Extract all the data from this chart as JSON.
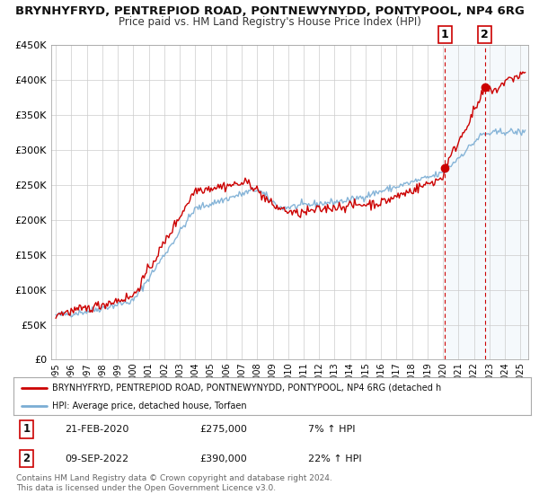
{
  "title": "BRYNHYFRYD, PENTREPIOD ROAD, PONTNEWYNYDD, PONTYPOOL, NP4 6RG",
  "subtitle": "Price paid vs. HM Land Registry's House Price Index (HPI)",
  "ylim": [
    0,
    450000
  ],
  "yticks": [
    0,
    50000,
    100000,
    150000,
    200000,
    250000,
    300000,
    350000,
    400000,
    450000
  ],
  "ytick_labels": [
    "£0",
    "£50K",
    "£100K",
    "£150K",
    "£200K",
    "£250K",
    "£300K",
    "£350K",
    "£400K",
    "£450K"
  ],
  "xlim_start": 1994.7,
  "xlim_end": 2025.5,
  "xtick_years": [
    1995,
    1996,
    1997,
    1998,
    1999,
    2000,
    2001,
    2002,
    2003,
    2004,
    2005,
    2006,
    2007,
    2008,
    2009,
    2010,
    2011,
    2012,
    2013,
    2014,
    2015,
    2016,
    2017,
    2018,
    2019,
    2020,
    2021,
    2022,
    2023,
    2024,
    2025
  ],
  "red_line_color": "#cc0000",
  "blue_line_color": "#7aadd4",
  "vline_color": "#cc0000",
  "shade_color": "#daeaf7",
  "marker1_x": 2020.13,
  "marker1_y": 275000,
  "marker2_x": 2022.69,
  "marker2_y": 390000,
  "vline1_x": 2020.13,
  "vline2_x": 2022.69,
  "legend_label_red": "BRYNHYFRYD, PENTREPIOD ROAD, PONTNEWYNYDD, PONTYPOOL, NP4 6RG (detached h",
  "legend_label_blue": "HPI: Average price, detached house, Torfaen",
  "table_row1": [
    "1",
    "21-FEB-2020",
    "£275,000",
    "7% ↑ HPI"
  ],
  "table_row2": [
    "2",
    "09-SEP-2022",
    "£390,000",
    "22% ↑ HPI"
  ],
  "footer_text": "Contains HM Land Registry data © Crown copyright and database right 2024.\nThis data is licensed under the Open Government Licence v3.0.",
  "background_color": "#ffffff",
  "grid_color": "#cccccc"
}
